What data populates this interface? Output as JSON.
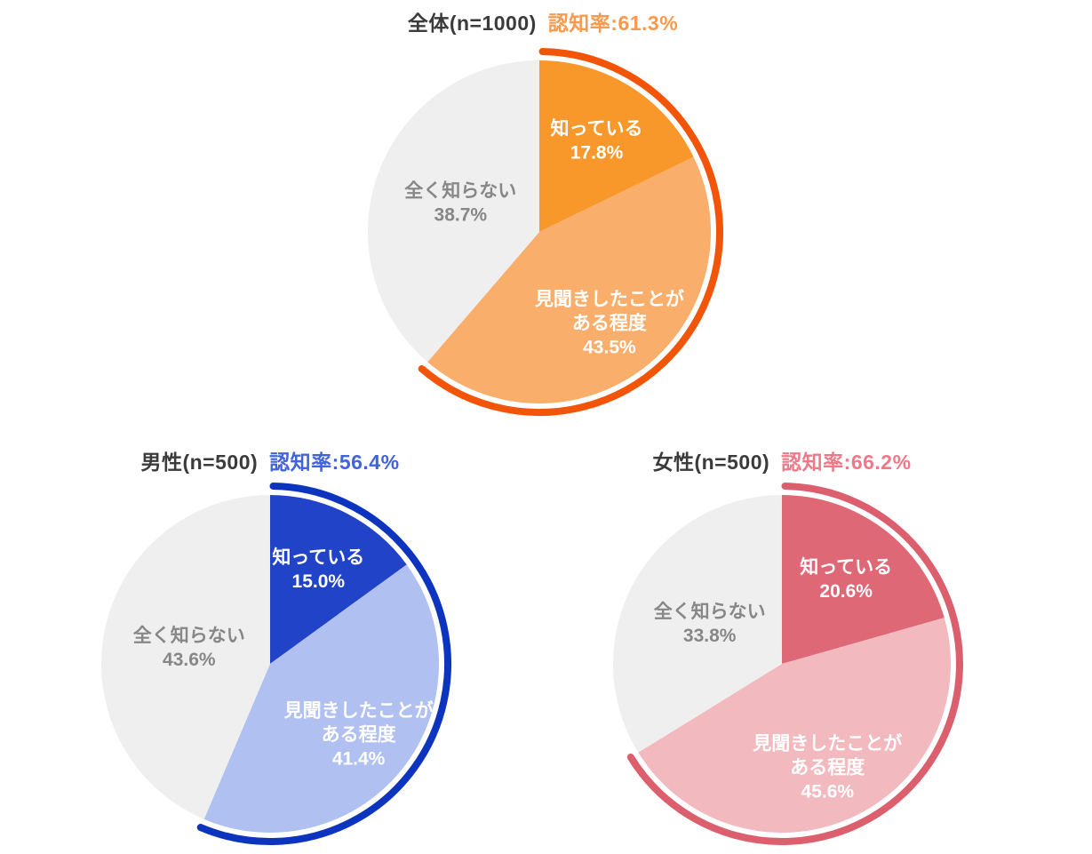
{
  "page": {
    "background": "#FFFFFF",
    "title_text_color": "#3B3B3B"
  },
  "chart_data": [
    {
      "type": "pie",
      "group": "overall",
      "title": "全体(n=1000)",
      "annotation": "認知率:61.3%",
      "awareness_rate_pct": 61.3,
      "labels": [
        "知っている",
        "見聞きしたことがある程度",
        "全く知らない"
      ],
      "label_lines": [
        [
          "知っている"
        ],
        [
          "見聞きしたことが",
          "ある程度"
        ],
        [
          "全く知らない"
        ]
      ],
      "values": [
        17.8,
        43.5,
        38.7
      ],
      "slice_colors": [
        "#F8982B",
        "#FAAE6C",
        "#EFEFF0"
      ],
      "label_colors": [
        "#FFFFFF",
        "#FFFFFF",
        "#878787"
      ],
      "arc_color": "#F25408",
      "accent_color": "#F79A4D",
      "start_angle_deg": 0,
      "direction": "clockwise",
      "legend": "none"
    },
    {
      "type": "pie",
      "group": "male",
      "title": "男性(n=500)",
      "annotation": "認知率:56.4%",
      "awareness_rate_pct": 56.4,
      "labels": [
        "知っている",
        "見聞きしたことがある程度",
        "全く知らない"
      ],
      "label_lines": [
        [
          "知っている"
        ],
        [
          "見聞きしたことが",
          "ある程度"
        ],
        [
          "全く知らない"
        ]
      ],
      "values": [
        15.0,
        41.4,
        43.6
      ],
      "slice_colors": [
        "#2143C8",
        "#B0C0F1",
        "#EFEFF0"
      ],
      "label_colors": [
        "#FFFFFF",
        "#FFFFFF",
        "#878787"
      ],
      "arc_color": "#0D34BE",
      "accent_color": "#4263DB",
      "start_angle_deg": 0,
      "direction": "clockwise",
      "legend": "none"
    },
    {
      "type": "pie",
      "group": "female",
      "title": "女性(n=500)",
      "annotation": "認知率:66.2%",
      "awareness_rate_pct": 66.2,
      "labels": [
        "知っている",
        "見聞きしたことがある程度",
        "全く知らない"
      ],
      "label_lines": [
        [
          "知っている"
        ],
        [
          "見聞きしたことが",
          "ある程度"
        ],
        [
          "全く知らない"
        ]
      ],
      "values": [
        20.6,
        45.6,
        33.8
      ],
      "slice_colors": [
        "#DE6876",
        "#F2B9BF",
        "#EFEFF0"
      ],
      "label_colors": [
        "#FFFFFF",
        "#FFFFFF",
        "#878787"
      ],
      "arc_color": "#DC5F6E",
      "accent_color": "#EF7989",
      "start_angle_deg": 0,
      "direction": "clockwise",
      "legend": "none"
    }
  ]
}
